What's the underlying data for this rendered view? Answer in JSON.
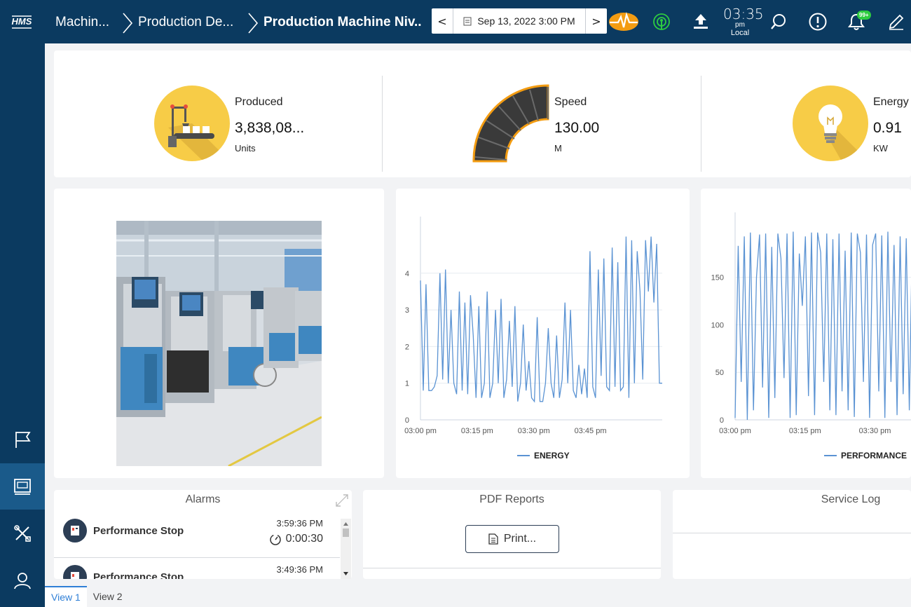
{
  "header": {
    "logo_text": "HMS",
    "breadcrumbs": [
      "Machin...",
      "Production De...",
      "Production Machine Niv..."
    ],
    "date": "Sep 13, 2022 3:00 PM",
    "prev_label": "<",
    "next_label": ">",
    "clock_time": "03:35",
    "clock_ampm": "pm",
    "clock_zone": "Local",
    "notification_badge": "99+",
    "icons": [
      "heartbeat-icon",
      "signal-icon",
      "upload-icon",
      "search-icon",
      "alert-icon",
      "bell-icon",
      "edit-icon"
    ]
  },
  "sidebar": {
    "items": [
      {
        "icon": "flag-icon",
        "active": false
      },
      {
        "icon": "dashboard-icon",
        "active": true
      },
      {
        "icon": "tools-icon",
        "active": false
      },
      {
        "icon": "user-icon",
        "active": false
      }
    ]
  },
  "kpis": [
    {
      "label": "Produced",
      "value": "3,838,08...",
      "unit": "Units",
      "icon": "conveyor-icon"
    },
    {
      "label": "Speed",
      "value": "130.00",
      "unit": "M",
      "icon": "belt-icon"
    },
    {
      "label": "Energy",
      "value": "0.91",
      "unit": "KW",
      "icon": "bulb-icon"
    }
  ],
  "colors": {
    "topbar": "#0b3a60",
    "accent": "#f7cc47",
    "series": "#5b93d3",
    "tab_active": "#2f7fd6"
  },
  "chart_data": [
    {
      "type": "line",
      "x_ticks": [
        "03:00 pm",
        "03:15 pm",
        "03:30 pm",
        "03:45 pm"
      ],
      "x_range_minutes": [
        0,
        64
      ],
      "y_ticks": [
        "0",
        "1",
        "2",
        "3",
        "4"
      ],
      "ylim": [
        0,
        5.2
      ],
      "series": [
        {
          "name": "ENERGY",
          "values": [
            3.8,
            0.8,
            3.7,
            0.8,
            0.8,
            0.9,
            1.2,
            4.0,
            1.1,
            4.1,
            1.0,
            3.0,
            1.0,
            0.7,
            3.5,
            0.8,
            3.2,
            0.7,
            3.4,
            2.3,
            0.6,
            3.1,
            0.6,
            1.0,
            3.5,
            0.6,
            1.0,
            3.0,
            1.0,
            3.3,
            0.6,
            1.1,
            2.7,
            0.9,
            3.1,
            0.5,
            1.0,
            2.6,
            0.8,
            1.6,
            0.6,
            0.5,
            2.8,
            0.5,
            0.5,
            1.0,
            2.5,
            1.0,
            0.6,
            2.3,
            0.6,
            1.1,
            3.2,
            1.0,
            3.0,
            0.8,
            0.6,
            1.5,
            0.7,
            1.4,
            0.6,
            4.6,
            0.9,
            0.6,
            4.1,
            1.2,
            4.4,
            0.9,
            0.8,
            4.7,
            0.9,
            4.3,
            0.8,
            0.9,
            5.0,
            0.6,
            4.9,
            1.0,
            4.6,
            3.5,
            1.1,
            4.9,
            3.5,
            5.0,
            3.2,
            4.8,
            1.0,
            1.0
          ]
        }
      ]
    },
    {
      "type": "line",
      "x_ticks": [
        "03:00 pm",
        "03:15 pm",
        "03:30 pm"
      ],
      "x_range_minutes": [
        0,
        40
      ],
      "y_ticks": [
        "0",
        "50",
        "100",
        "150"
      ],
      "ylim": [
        0,
        205
      ],
      "series": [
        {
          "name": "PERFORMANCE",
          "values": [
            2,
            183,
            40,
            193,
            0,
            197,
            10,
            150,
            195,
            34,
            196,
            2,
            182,
            23,
            196,
            170,
            44,
            196,
            2,
            198,
            5,
            175,
            120,
            193,
            25,
            197,
            5,
            197,
            176,
            40,
            196,
            10,
            190,
            5,
            196,
            30,
            178,
            10,
            197,
            3,
            196,
            176,
            40,
            195,
            2,
            184,
            196,
            30,
            194,
            2,
            198,
            40,
            184,
            5,
            193,
            27,
            191,
            10,
            198,
            175,
            40,
            190
          ]
        }
      ]
    }
  ],
  "panels": {
    "alarms": {
      "title": "Alarms",
      "rows": [
        {
          "name": "Performance Stop",
          "time": "3:59:36 PM",
          "duration": "0:00:30"
        },
        {
          "name": "Performance Stop",
          "time": "3:49:36 PM",
          "duration": ""
        }
      ]
    },
    "reports": {
      "title": "PDF Reports",
      "print_label": "Print..."
    },
    "service_log": {
      "title": "Service Log"
    }
  },
  "tabs": [
    {
      "label": "View 1",
      "active": true
    },
    {
      "label": "View 2",
      "active": false
    }
  ]
}
